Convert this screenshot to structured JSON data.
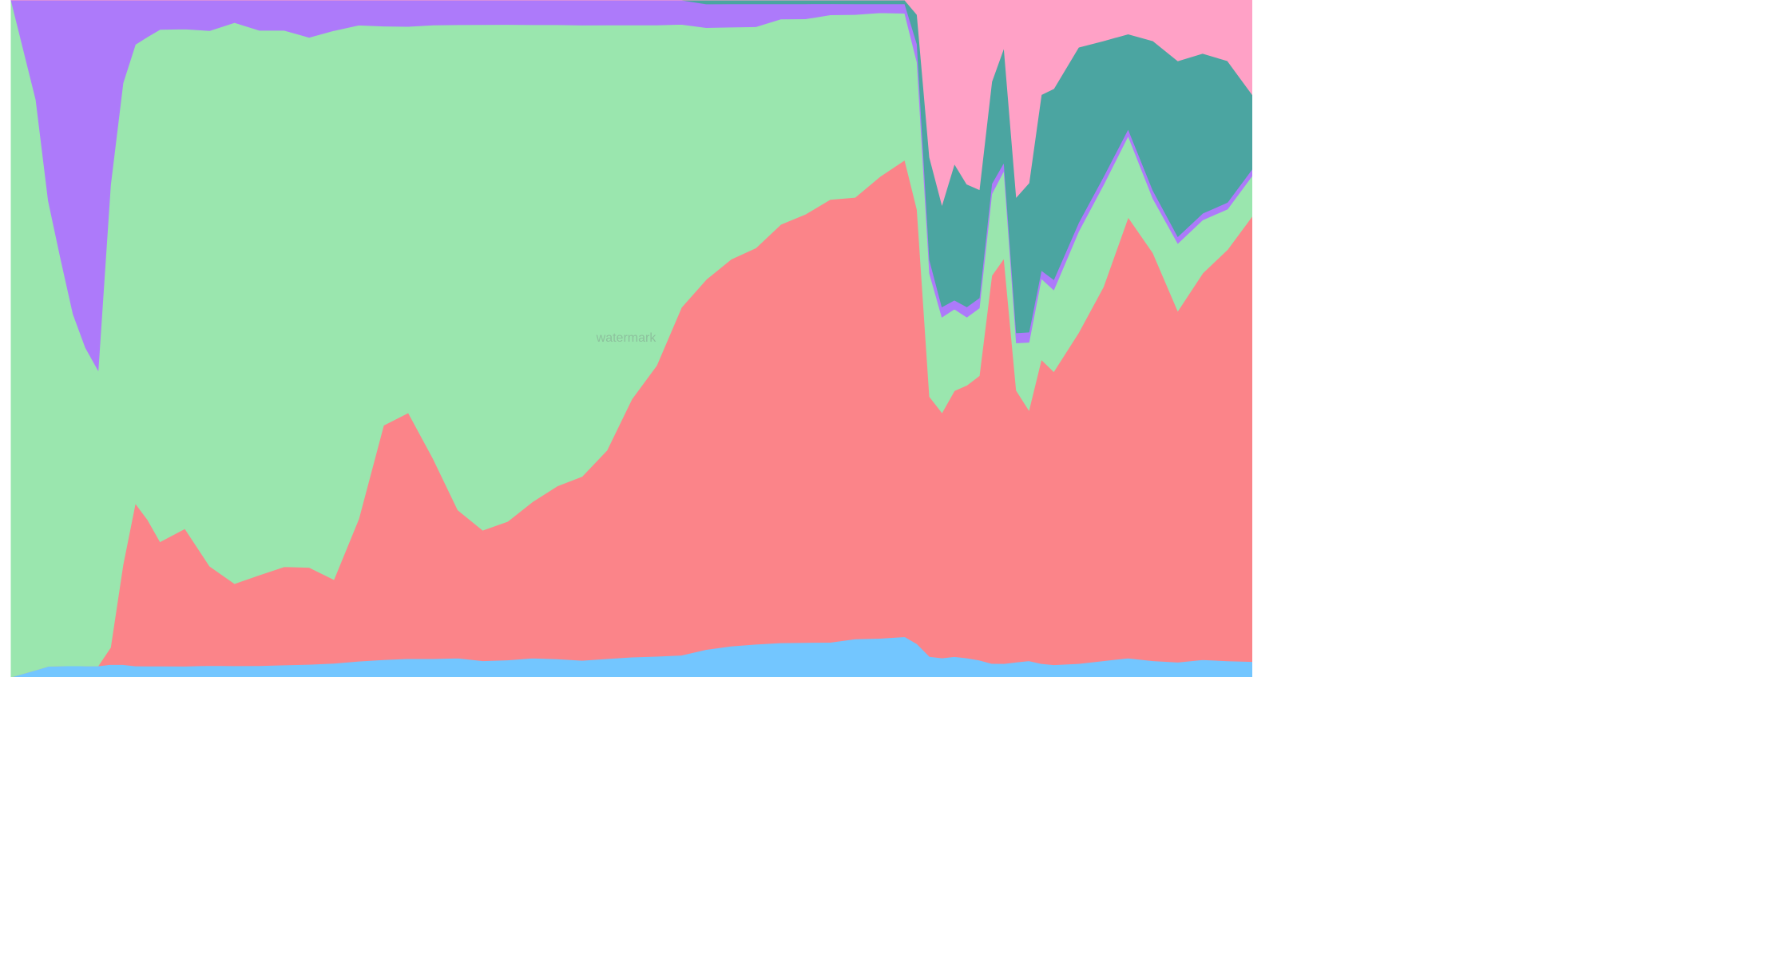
{
  "watermark": "watermark",
  "chart_data": {
    "type": "area",
    "stacked": "percent",
    "title": "",
    "xlabel": "",
    "ylabel": "",
    "x": [
      0,
      2,
      3,
      4,
      5,
      6,
      7,
      8,
      9,
      10,
      11,
      12,
      14,
      16,
      18,
      20,
      22,
      24,
      26,
      28,
      30,
      32,
      34,
      36,
      38,
      40,
      42,
      44,
      46,
      48,
      50,
      52,
      54,
      56,
      58,
      60,
      62,
      64,
      66,
      68,
      70,
      72,
      73,
      74,
      75,
      76,
      77,
      78,
      79,
      80,
      81,
      82,
      83,
      84,
      86,
      88,
      90,
      92,
      94,
      96,
      98,
      100
    ],
    "ylim": [
      0,
      100
    ],
    "grid": false,
    "legend": "none",
    "series": [
      {
        "color": "#73c6ff",
        "values": [
          0,
          1,
          1.5,
          1.5,
          1.5,
          1.5,
          1.5,
          1.5,
          1.5,
          1.5,
          1.5,
          1.5,
          1.5,
          1.5,
          1.5,
          1.5,
          1.6,
          1.7,
          1.8,
          1.9,
          2.0,
          2.1,
          2.2,
          2.3,
          2.0,
          2.1,
          2.3,
          2.2,
          2.0,
          2.2,
          2.4,
          2.5,
          2.7,
          3.5,
          4.0,
          4.3,
          4.5,
          4.6,
          4.7,
          5.0,
          5.2,
          5.5,
          4.5,
          3.0,
          2.8,
          3.0,
          2.8,
          2.5,
          2.0,
          2.0,
          2.2,
          2.4,
          2.0,
          1.8,
          2.0,
          2.4,
          2.8,
          2.4,
          2.2,
          2.6,
          2.4,
          2.3
        ]
      },
      {
        "color": "#fb8489",
        "values": [
          0,
          0,
          0,
          0,
          0,
          0,
          0,
          2,
          12,
          22,
          20,
          17,
          19,
          13,
          11,
          12,
          13,
          13,
          11,
          17,
          27,
          28,
          24,
          18,
          16,
          17,
          19,
          21,
          22,
          25,
          31,
          35,
          43,
          47,
          50,
          52,
          55,
          57,
          60,
          58,
          62,
          65,
          59,
          38,
          36,
          39,
          40,
          42,
          57,
          60,
          40,
          37,
          45,
          43,
          49,
          55,
          65,
          60,
          52,
          58,
          61,
          66
        ]
      },
      {
        "color": "#9ae6ae",
        "values": [
          100,
          80,
          65,
          55,
          47,
          43,
          40,
          55,
          58,
          62,
          66,
          70,
          69,
          70,
          75,
          72,
          71,
          71,
          72,
          59,
          46,
          44,
          52,
          59,
          62,
          61,
          58,
          56,
          54,
          51,
          45,
          41,
          35,
          32,
          30,
          29,
          27,
          26,
          25,
          24,
          22,
          20,
          20,
          18,
          14,
          12,
          10,
          10,
          12,
          13,
          7,
          10,
          12,
          12,
          15,
          15,
          12,
          8,
          10,
          8,
          6,
          6
        ]
      },
      {
        "color": "#ad7afa",
        "values": [
          0,
          14,
          28,
          35,
          42,
          47,
          50,
          22,
          10,
          6,
          5,
          4,
          4,
          4,
          3,
          4,
          4,
          5,
          4,
          3,
          3,
          3,
          3,
          3,
          3,
          3,
          3,
          3,
          3,
          3,
          3,
          3,
          3,
          3,
          3,
          3,
          2,
          2,
          1.5,
          1.4,
          1.2,
          1.3,
          2.5,
          2.0,
          1.5,
          1.3,
          1.5,
          1.5,
          1.5,
          1.2,
          1.5,
          1.5,
          1.2,
          1.5,
          1.3,
          1.2,
          1.0,
          1.2,
          1.0,
          1.0,
          1.0,
          1.0
        ]
      },
      {
        "color": "#4ba5a1",
        "values": [
          0,
          0,
          0,
          0,
          0,
          0,
          0,
          0,
          0,
          0,
          0,
          0,
          0,
          0,
          0,
          0,
          0,
          0,
          0,
          0,
          0,
          0,
          0,
          0,
          0,
          0,
          0,
          0,
          0,
          0,
          0,
          0,
          0,
          0.5,
          0.5,
          0.5,
          0.5,
          0.5,
          0.5,
          0.5,
          0.5,
          0.5,
          4,
          15,
          15,
          20,
          18,
          16,
          15,
          17,
          20,
          22,
          26,
          28,
          26,
          20,
          14,
          22,
          26,
          24,
          21,
          11
        ]
      },
      {
        "color": "#ffa1c6",
        "values": [
          0,
          0,
          0,
          0,
          0,
          0,
          0,
          0,
          0,
          0,
          0,
          0,
          0,
          0,
          0,
          0,
          0,
          0,
          0,
          0,
          0,
          0,
          0,
          0,
          0,
          0,
          0,
          0,
          0,
          0,
          0,
          0,
          0,
          0,
          0,
          0,
          0,
          0,
          0,
          0,
          0,
          0,
          2,
          23,
          30,
          24,
          27,
          28,
          12,
          7,
          29,
          27,
          14,
          13,
          7,
          6,
          5,
          6,
          9,
          8,
          9,
          14
        ]
      }
    ]
  }
}
